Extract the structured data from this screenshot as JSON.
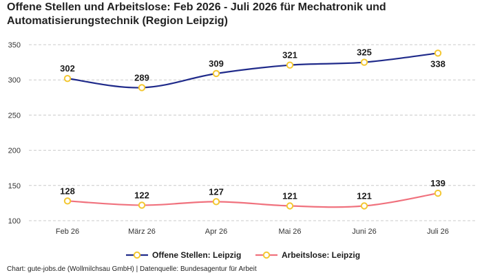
{
  "title": "Offene Stellen und Arbeitslose: Feb 2026 - Juli 2026 für Mechatronik und Automatisierungstechnik (Region Leipzig)",
  "footer": "Chart: gute-jobs.de (Wollmilchsau GmbH) | Datenquelle: Bundesagentur für Arbeit",
  "chart_data": {
    "type": "line",
    "categories": [
      "Feb 26",
      "März 26",
      "Apr 26",
      "Mai 26",
      "Juni 26",
      "Juli 26"
    ],
    "series": [
      {
        "name": "Offene Stellen: Leipzig",
        "values": [
          302,
          289,
          309,
          321,
          325,
          338
        ],
        "color": "#1f2a8a",
        "marker_color": "#f3c731"
      },
      {
        "name": "Arbeitslose: Leipzig",
        "values": [
          128,
          122,
          127,
          121,
          121,
          139
        ],
        "color": "#f0717d",
        "marker_color": "#f3c731"
      }
    ],
    "y_ticks": [
      100,
      150,
      200,
      250,
      300,
      350
    ],
    "ylim": [
      100,
      350
    ],
    "grid": true,
    "legend": "bottom-center",
    "xlabel": "",
    "ylabel": ""
  }
}
